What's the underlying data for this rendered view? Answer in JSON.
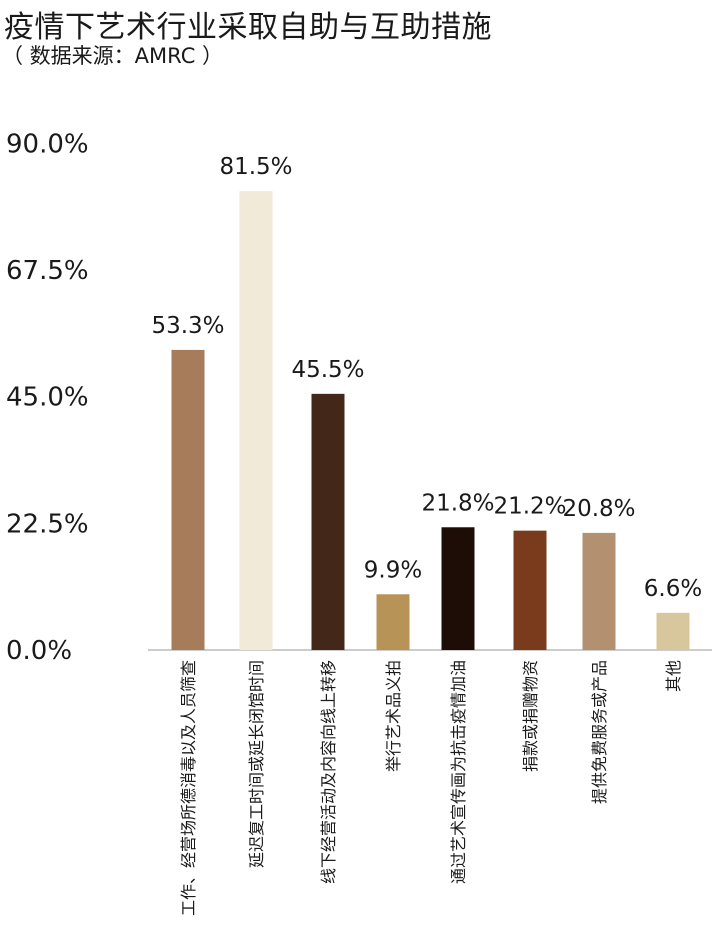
{
  "chart_data": {
    "type": "bar",
    "title": "疫情下艺术行业采取自助与互助措施",
    "subtitle": "（ 数据来源：AMRC ）",
    "categories": [
      "工作、经营场所德消毒以及人员筛查",
      "延迟复工时间或延长闭馆时间",
      "线下经营活动及内容向线上转移",
      "举行艺术品义拍",
      "通过艺术宣传画为抗击疫情加油",
      "捐款或捐赠物资",
      "提供免费服务或产品",
      "其他"
    ],
    "values": [
      53.3,
      81.5,
      45.5,
      9.9,
      21.8,
      21.2,
      20.8,
      6.6
    ],
    "value_labels": [
      "53.3%",
      "81.5%",
      "45.5%",
      "9.9%",
      "21.8%",
      "21.2%",
      "20.8%",
      "6.6%"
    ],
    "colors": [
      "#a67c5b",
      "#f2ead9",
      "#432819",
      "#b89357",
      "#1e0d07",
      "#7a3a1c",
      "#b39170",
      "#d8c79c"
    ],
    "yticks": [
      "0.0%",
      "22.5%",
      "45.0%",
      "67.5%",
      "90.0%"
    ],
    "ytick_values": [
      0,
      22.5,
      45,
      67.5,
      90
    ],
    "xlabel": "",
    "ylabel": "",
    "grid": false
  }
}
